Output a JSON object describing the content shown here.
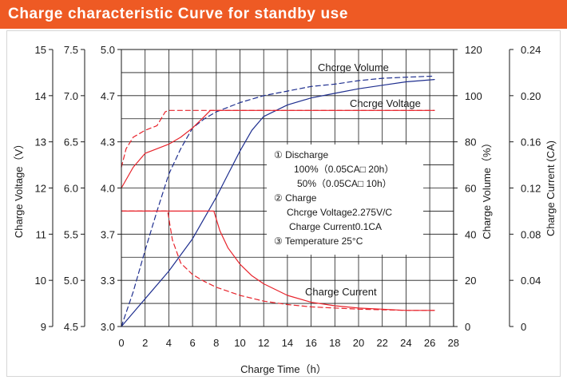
{
  "header": {
    "title": "Charge characteristic Curve for standby use"
  },
  "chart_data": {
    "type": "line",
    "title": "Charge characteristic Curve for standby use",
    "xlabel": "Charge Time（h）",
    "xlim": [
      0,
      28
    ],
    "x_ticks": [
      "0",
      "2",
      "4",
      "6",
      "8",
      "10",
      "12",
      "14",
      "16",
      "18",
      "20",
      "22",
      "24",
      "26",
      "28"
    ],
    "grid": true,
    "left_axes": [
      {
        "label": "Charge Voltage（V）",
        "ticks": [
          "15",
          "14",
          "13",
          "12",
          "11",
          "10",
          "9"
        ]
      },
      {
        "label": "",
        "ticks": [
          "7.5",
          "7.0",
          "6.5",
          "6.0",
          "5.5",
          "5.0",
          "4.5"
        ]
      },
      {
        "label": "",
        "ticks": [
          "5.0",
          "4.7",
          "4.3",
          "4.0",
          "3.7",
          "3.3",
          "3.0"
        ]
      }
    ],
    "right_axes": [
      {
        "label": "Charge Volume（%）",
        "ticks": [
          "120",
          "100",
          "80",
          "60",
          "40",
          "20",
          "0"
        ],
        "ylim": [
          0,
          120
        ]
      },
      {
        "label": "Charge Current (CA)",
        "ticks": [
          "0.24",
          "0.20",
          "0.16",
          "0.12",
          "0.08",
          "0.04",
          "0"
        ],
        "ylim": [
          0,
          0.24
        ]
      }
    ],
    "series": [
      {
        "name": "Chcrge Volume",
        "axis": "Charge Volume（%）",
        "color": "#1f2f8f",
        "style": "dashed",
        "x": [
          0,
          1,
          2,
          3,
          4,
          5,
          6,
          7,
          8,
          10,
          12,
          14,
          16,
          18,
          20,
          22,
          24,
          26.4
        ],
        "y": [
          0,
          15,
          33,
          50,
          66,
          77,
          86,
          90,
          93,
          97,
          100,
          102,
          104,
          105,
          106.5,
          107.5,
          108,
          108.5
        ]
      },
      {
        "name": "Chcrge Volume",
        "axis": "Charge Volume（%）",
        "color": "#1f2f8f",
        "style": "solid",
        "x": [
          0,
          2,
          4,
          6,
          8,
          9,
          10,
          11,
          12,
          14,
          16,
          18,
          20,
          22,
          24,
          26.4
        ],
        "y": [
          0,
          12,
          24,
          38,
          56,
          66,
          76,
          85,
          91,
          96,
          99,
          101,
          103,
          104.5,
          106,
          107
        ]
      },
      {
        "name": "Chcrge Voltage",
        "axis": "Charge Voltage（V）",
        "color": "#e8232b",
        "style": "dashed",
        "x": [
          0,
          0.4,
          1,
          2,
          3,
          3.7,
          4,
          8,
          12,
          16,
          20,
          24,
          26.4
        ],
        "y": [
          12.45,
          12.85,
          13.1,
          13.25,
          13.35,
          13.65,
          13.68,
          13.68,
          13.68,
          13.68,
          13.68,
          13.68,
          13.68
        ]
      },
      {
        "name": "Chcrge Voltage",
        "axis": "Charge Voltage（V）",
        "color": "#e8232b",
        "style": "solid",
        "x": [
          0,
          1,
          2,
          3,
          4,
          5,
          6,
          7,
          7.5,
          8,
          12,
          16,
          20,
          24,
          26.4
        ],
        "y": [
          12.0,
          12.45,
          12.75,
          12.85,
          12.95,
          13.1,
          13.3,
          13.55,
          13.68,
          13.68,
          13.68,
          13.68,
          13.68,
          13.68,
          13.68
        ]
      },
      {
        "name": "Charge Current",
        "axis": "Charge Current (CA)",
        "color": "#e8232b",
        "style": "dashed",
        "x": [
          0,
          3.9,
          4.3,
          5,
          6,
          7,
          8,
          10,
          12,
          14,
          16,
          20,
          24,
          26.4
        ],
        "y": [
          0.1,
          0.1,
          0.075,
          0.055,
          0.045,
          0.039,
          0.034,
          0.027,
          0.022,
          0.019,
          0.017,
          0.015,
          0.014,
          0.014
        ]
      },
      {
        "name": "Charge Current",
        "axis": "Charge Current (CA)",
        "color": "#e8232b",
        "style": "solid",
        "x": [
          0,
          7.8,
          8.3,
          9,
          10,
          11,
          12,
          14,
          16,
          18,
          20,
          22,
          24,
          26.4
        ],
        "y": [
          0.1,
          0.1,
          0.083,
          0.068,
          0.054,
          0.044,
          0.037,
          0.027,
          0.021,
          0.018,
          0.016,
          0.015,
          0.014,
          0.014
        ]
      }
    ],
    "annotations": {
      "volume": "Chcrge Volume",
      "voltage": "Chcrge Voltage",
      "current": "Charge Current"
    },
    "notes": [
      "①   Discharge",
      "100%（0.05CA□ 20h）",
      "50%（0.05CA□ 10h）",
      "②  Charge",
      "Chcrge Voltage2.275V/C",
      "Charge Current0.1CA",
      "③  Temperature 25°C"
    ]
  }
}
